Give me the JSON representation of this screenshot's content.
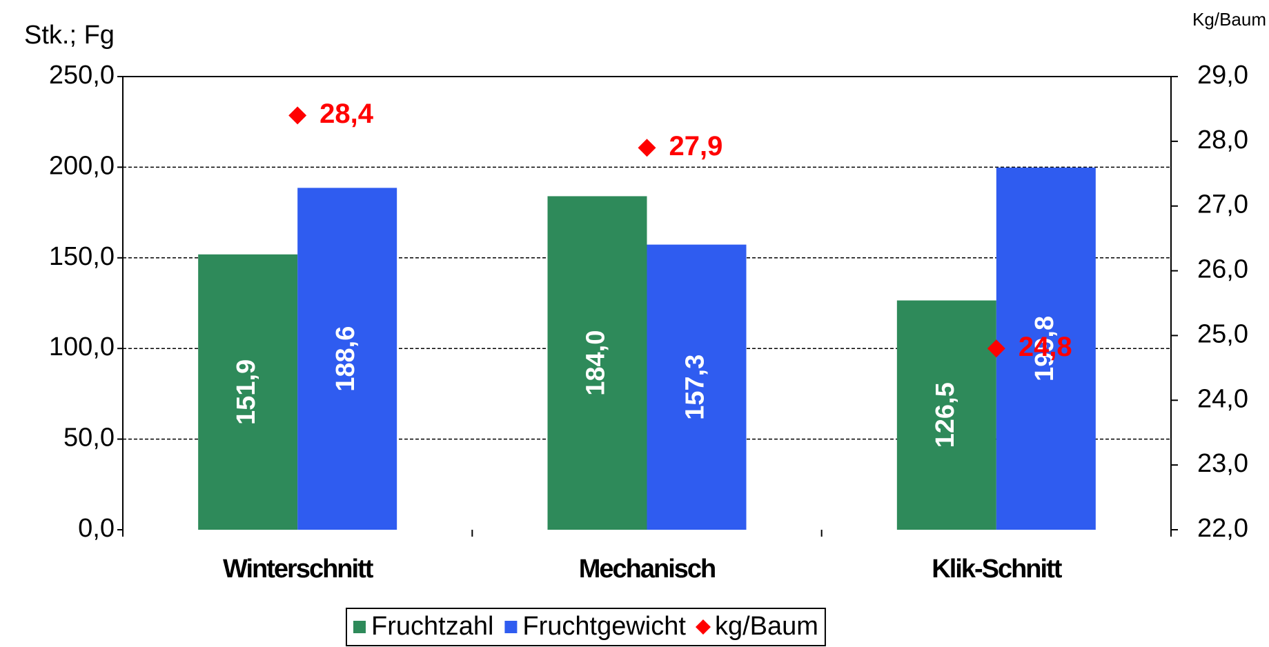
{
  "chart_data": {
    "type": "bar",
    "y_label": "Stk.; Fg",
    "y2_label": "Kg/Baum",
    "categories": [
      "Winterschnitt",
      "Mechanisch",
      "Klik-Schnitt"
    ],
    "series": [
      {
        "name": "Fruchtzahl",
        "type": "bar",
        "color": "#2e8a5a",
        "values": [
          151.9,
          184.0,
          126.5
        ],
        "value_labels": [
          "151,9",
          "184,0",
          "126,5"
        ]
      },
      {
        "name": "Fruchtgewicht",
        "type": "bar",
        "color": "#2f5cf0",
        "values": [
          188.6,
          157.3,
          199.8
        ],
        "value_labels": [
          "188,6",
          "157,3",
          "199,8"
        ]
      },
      {
        "name": "kg/Baum",
        "type": "scatter",
        "axis": "y2",
        "color": "#ff0000",
        "values": [
          28.4,
          27.9,
          24.8
        ],
        "value_labels": [
          "28,4",
          "27,9",
          "24,8"
        ]
      }
    ],
    "ylim": [
      0,
      250
    ],
    "yticks": [
      {
        "value": 0,
        "label": "0,0"
      },
      {
        "value": 50,
        "label": "50,0"
      },
      {
        "value": 100,
        "label": "100,0"
      },
      {
        "value": 150,
        "label": "150,0"
      },
      {
        "value": 200,
        "label": "200,0"
      },
      {
        "value": 250,
        "label": "250,0"
      }
    ],
    "y2lim": [
      22,
      29
    ],
    "y2ticks": [
      {
        "value": 22,
        "label": "22,0"
      },
      {
        "value": 23,
        "label": "23,0"
      },
      {
        "value": 24,
        "label": "24,0"
      },
      {
        "value": 25,
        "label": "25,0"
      },
      {
        "value": 26,
        "label": "26,0"
      },
      {
        "value": 27,
        "label": "27,0"
      },
      {
        "value": 28,
        "label": "28,0"
      },
      {
        "value": 29,
        "label": "29,0"
      }
    ],
    "grid": true
  }
}
